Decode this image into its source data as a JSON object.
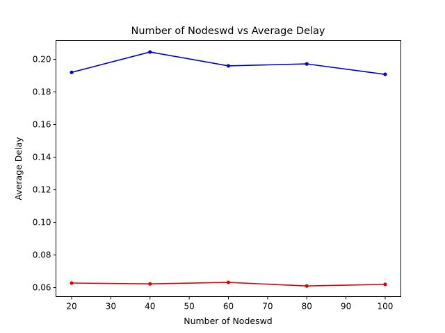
{
  "chart_data": {
    "type": "line",
    "title": "Number of Nodeswd vs Average Delay",
    "xlabel": "Number of Nodeswd",
    "ylabel": "Average Delay",
    "x": [
      20,
      40,
      60,
      80,
      100
    ],
    "xlim": [
      16,
      104
    ],
    "ylim": [
      0.0545,
      0.2115
    ],
    "xticks": [
      20,
      30,
      40,
      50,
      60,
      70,
      80,
      90,
      100
    ],
    "yticks": [
      0.06,
      0.08,
      0.1,
      0.12,
      0.14,
      0.16,
      0.18,
      0.2
    ],
    "ytick_labels": [
      "0.06",
      "0.08",
      "0.10",
      "0.12",
      "0.14",
      "0.16",
      "0.18",
      "0.20"
    ],
    "grid": false,
    "series": [
      {
        "color": "#0000cc",
        "values": [
          0.192,
          0.2045,
          0.196,
          0.1972,
          0.1908
        ]
      },
      {
        "color": "#dd0000",
        "values": [
          0.0628,
          0.0623,
          0.0632,
          0.061,
          0.062
        ]
      }
    ]
  }
}
